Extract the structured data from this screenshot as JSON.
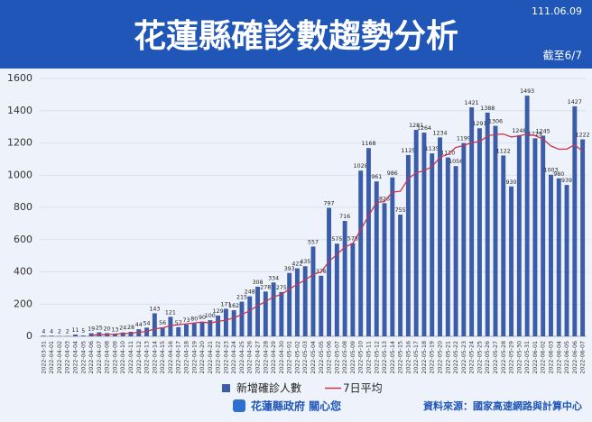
{
  "header": {
    "title": "花蓮縣確診數趨勢分析",
    "date": "111.06.09",
    "as_of": "截至6/7"
  },
  "chart_data": {
    "type": "bar",
    "categories": [
      "2022-03-31",
      "2022-04-01",
      "2022-04-02",
      "2022-04-03",
      "2022-04-04",
      "2022-04-05",
      "2022-04-06",
      "2022-04-07",
      "2022-04-08",
      "2022-04-09",
      "2022-04-10",
      "2022-04-11",
      "2022-04-12",
      "2022-04-13",
      "2022-04-14",
      "2022-04-15",
      "2022-04-16",
      "2022-04-17",
      "2022-04-18",
      "2022-04-19",
      "2022-04-20",
      "2022-04-21",
      "2022-04-22",
      "2022-04-23",
      "2022-04-24",
      "2022-04-25",
      "2022-04-26",
      "2022-04-27",
      "2022-04-28",
      "2022-04-29",
      "2022-04-30",
      "2022-05-01",
      "2022-05-02",
      "2022-05-03",
      "2022-05-04",
      "2022-05-05",
      "2022-05-06",
      "2022-05-07",
      "2022-05-08",
      "2022-05-09",
      "2022-05-10",
      "2022-05-11",
      "2022-05-12",
      "2022-05-13",
      "2022-05-14",
      "2022-05-15",
      "2022-05-16",
      "2022-05-17",
      "2022-05-18",
      "2022-05-19",
      "2022-05-20",
      "2022-05-21",
      "2022-05-22",
      "2022-05-23",
      "2022-05-24",
      "2022-05-25",
      "2022-05-26",
      "2022-05-27",
      "2022-05-28",
      "2022-05-29",
      "2022-05-30",
      "2022-05-31",
      "2022-06-01",
      "2022-06-02",
      "2022-06-03",
      "2022-06-04",
      "2022-06-05",
      "2022-06-06",
      "2022-06-07"
    ],
    "series": [
      {
        "name": "新增確診人數",
        "type": "bar",
        "color": "#3b5ca8",
        "show_labels": true,
        "values": [
          4,
          4,
          2,
          2,
          11,
          5,
          19,
          25,
          20,
          13,
          24,
          28,
          44,
          54,
          143,
          56,
          121,
          57,
          73,
          80,
          90,
          100,
          129,
          171,
          162,
          215,
          248,
          308,
          278,
          334,
          275,
          393,
          422,
          435,
          557,
          376,
          797,
          575,
          716,
          578,
          1028,
          1168,
          961,
          826,
          986,
          755,
          1125,
          1281,
          1264,
          1135,
          1234,
          1110,
          1056,
          1199,
          1421,
          1291,
          1388,
          1306,
          1122,
          930,
          1248,
          1493,
          1229,
          1245,
          1003,
          980,
          939,
          1427,
          1222
        ]
      },
      {
        "name": "7日平均",
        "type": "line",
        "color": "#c8374f",
        "values": [
          null,
          null,
          null,
          null,
          null,
          null,
          7,
          10,
          12,
          14,
          17,
          19,
          25,
          30,
          47,
          52,
          67,
          72,
          78,
          83,
          89,
          82,
          93,
          100,
          115,
          135,
          159,
          190,
          216,
          245,
          260,
          293,
          323,
          349,
          385,
          399,
          465,
          508,
          554,
          576,
          661,
          748,
          832,
          836,
          895,
          900,
          978,
          1015,
          1028,
          1053,
          1111,
          1129,
          1172,
          1183,
          1203,
          1207,
          1243,
          1253,
          1255,
          1237,
          1244,
          1254,
          1245,
          1225,
          1181,
          1161,
          1162,
          1188,
          1149
        ]
      }
    ],
    "ylim": [
      0,
      1600
    ],
    "yticks": [
      0,
      200,
      400,
      600,
      800,
      1000,
      1200,
      1400,
      1600
    ],
    "grid": true
  },
  "footer": {
    "agency": "花蓮縣政府 關心您",
    "source": "資料來源：國家高速網路與計算中心"
  }
}
